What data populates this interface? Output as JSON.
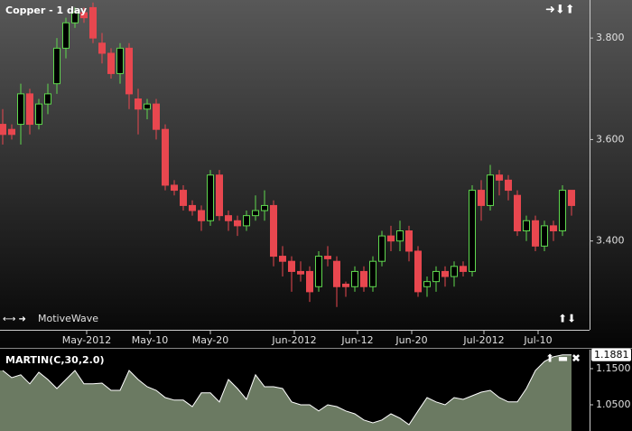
{
  "header": {
    "title": "Copper - 1 day",
    "watermark": "MotiveWave",
    "indicator": "MARTIN(C,30,2.0)"
  },
  "chart_data": [
    {
      "type": "candlestick",
      "open": [
        3.63,
        3.62,
        3.63,
        3.69,
        3.63,
        3.67,
        3.71,
        3.78,
        3.83,
        3.85,
        3.86,
        3.79,
        3.77,
        3.73,
        3.78,
        3.68,
        3.66,
        3.67,
        3.62,
        3.51,
        3.5,
        3.47,
        3.46,
        3.44,
        3.53,
        3.45,
        3.44,
        3.43,
        3.45,
        3.46,
        3.47,
        3.37,
        3.36,
        3.34,
        3.34,
        3.31,
        3.37,
        3.36,
        3.315,
        3.31,
        3.34,
        3.31,
        3.36,
        3.41,
        3.4,
        3.42,
        3.38,
        3.31,
        3.32,
        3.34,
        3.33,
        3.35,
        3.34,
        3.5,
        3.47,
        3.53,
        3.52,
        3.49,
        3.42,
        3.44,
        3.39,
        3.43,
        3.42,
        3.5
      ],
      "high": [
        3.66,
        3.63,
        3.71,
        3.7,
        3.68,
        3.71,
        3.8,
        3.84,
        3.86,
        3.86,
        3.87,
        3.81,
        3.78,
        3.79,
        3.79,
        3.7,
        3.68,
        3.68,
        3.63,
        3.52,
        3.51,
        3.48,
        3.47,
        3.54,
        3.54,
        3.46,
        3.45,
        3.46,
        3.49,
        3.5,
        3.48,
        3.39,
        3.37,
        3.36,
        3.35,
        3.38,
        3.39,
        3.37,
        3.32,
        3.35,
        3.35,
        3.37,
        3.42,
        3.43,
        3.44,
        3.43,
        3.39,
        3.33,
        3.35,
        3.35,
        3.36,
        3.36,
        3.51,
        3.52,
        3.55,
        3.54,
        3.53,
        3.5,
        3.45,
        3.45,
        3.44,
        3.44,
        3.51,
        3.5
      ],
      "low": [
        3.59,
        3.6,
        3.59,
        3.61,
        3.62,
        3.65,
        3.69,
        3.76,
        3.82,
        3.83,
        3.79,
        3.75,
        3.72,
        3.71,
        3.66,
        3.61,
        3.64,
        3.6,
        3.5,
        3.49,
        3.46,
        3.45,
        3.42,
        3.43,
        3.44,
        3.42,
        3.41,
        3.42,
        3.44,
        3.44,
        3.35,
        3.33,
        3.3,
        3.32,
        3.28,
        3.3,
        3.35,
        3.27,
        3.29,
        3.3,
        3.3,
        3.3,
        3.35,
        3.38,
        3.38,
        3.36,
        3.29,
        3.29,
        3.3,
        3.31,
        3.31,
        3.33,
        3.33,
        3.44,
        3.46,
        3.49,
        3.48,
        3.41,
        3.4,
        3.38,
        3.38,
        3.4,
        3.41,
        3.45
      ],
      "close": [
        3.61,
        3.61,
        3.69,
        3.63,
        3.67,
        3.69,
        3.78,
        3.83,
        3.85,
        3.84,
        3.8,
        3.77,
        3.73,
        3.78,
        3.69,
        3.66,
        3.67,
        3.62,
        3.51,
        3.5,
        3.47,
        3.46,
        3.44,
        3.53,
        3.45,
        3.44,
        3.43,
        3.45,
        3.46,
        3.47,
        3.37,
        3.36,
        3.34,
        3.335,
        3.3,
        3.37,
        3.365,
        3.31,
        3.31,
        3.34,
        3.31,
        3.36,
        3.41,
        3.4,
        3.42,
        3.38,
        3.3,
        3.32,
        3.34,
        3.33,
        3.35,
        3.34,
        3.5,
        3.47,
        3.53,
        3.52,
        3.5,
        3.42,
        3.44,
        3.39,
        3.43,
        3.42,
        3.5,
        3.47
      ],
      "up_color": "#5fd84e",
      "down_color": "#e8474f",
      "ylim": [
        3.225,
        3.875
      ],
      "yticks": [
        {
          "value": 3.4,
          "label": "3.400"
        },
        {
          "value": 3.6,
          "label": "3.600"
        },
        {
          "value": 3.8,
          "label": "3.800"
        }
      ],
      "xticks": [
        {
          "value": 9.3,
          "label": "May-2012"
        },
        {
          "value": 16.3,
          "label": "May-10"
        },
        {
          "value": 23,
          "label": "May-20"
        },
        {
          "value": 32.3,
          "label": "Jun-2012"
        },
        {
          "value": 39.3,
          "label": "Jun-12"
        },
        {
          "value": 45.3,
          "label": "Jun-20"
        },
        {
          "value": 53.3,
          "label": "Jul-2012"
        },
        {
          "value": 59.3,
          "label": "Jul-10"
        }
      ]
    },
    {
      "type": "area",
      "values": [
        1.145,
        1.125,
        1.133,
        1.108,
        1.14,
        1.12,
        1.095,
        1.12,
        1.145,
        1.108,
        1.108,
        1.11,
        1.09,
        1.09,
        1.145,
        1.12,
        1.1,
        1.09,
        1.07,
        1.063,
        1.063,
        1.045,
        1.083,
        1.083,
        1.058,
        1.12,
        1.095,
        1.065,
        1.133,
        1.1,
        1.1,
        1.095,
        1.058,
        1.05,
        1.05,
        1.033,
        1.05,
        1.045,
        1.033,
        1.025,
        1.008,
        1.0,
        1.008,
        1.025,
        1.013,
        0.995,
        1.033,
        1.07,
        1.058,
        1.05,
        1.07,
        1.065,
        1.075,
        1.085,
        1.09,
        1.07,
        1.058,
        1.058,
        1.095,
        1.145,
        1.17,
        1.183,
        1.188,
        1.1881
      ],
      "color": "#6b7a62",
      "ylim": [
        0.9775,
        1.2025
      ],
      "yticks": [
        {
          "value": 1.05,
          "label": "1.0500"
        },
        {
          "value": 1.15,
          "label": "1.1500"
        }
      ]
    }
  ]
}
